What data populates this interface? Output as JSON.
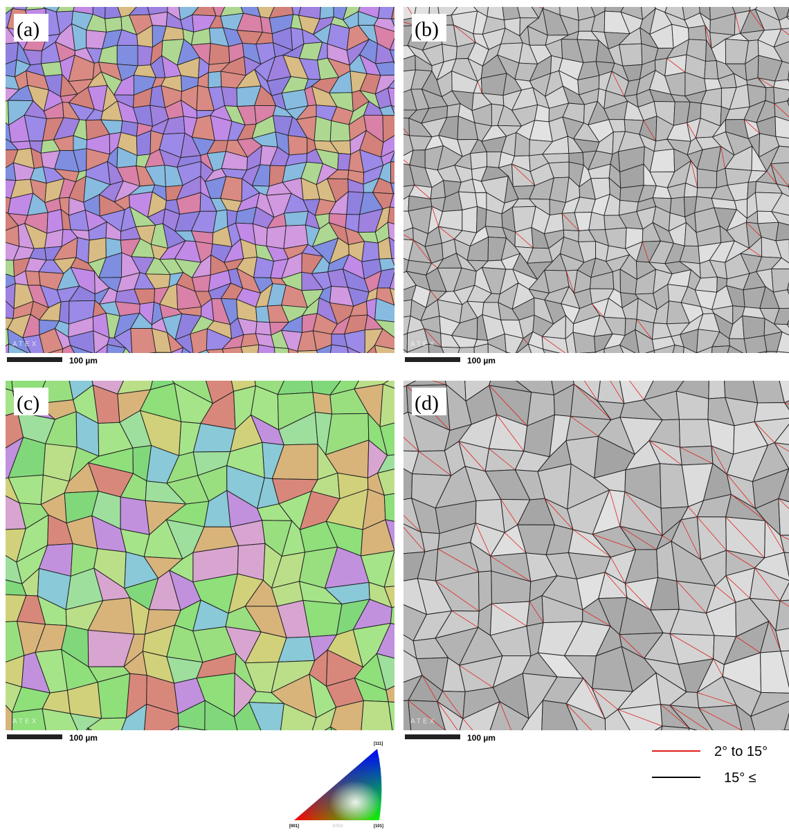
{
  "panels": [
    {
      "label": "(a)",
      "scale_bar": "100 µm",
      "watermark": "ATEX",
      "style": "ipf-fine"
    },
    {
      "label": "(b)",
      "scale_bar": "100 µm",
      "watermark": "ATEX",
      "style": "grey-fine"
    },
    {
      "label": "(c)",
      "scale_bar": "100 µm",
      "watermark": "ATEX",
      "style": "ipf-coarse"
    },
    {
      "label": "(d)",
      "scale_bar": "100 µm",
      "watermark": "ATEX",
      "style": "grey-coarse"
    }
  ],
  "legend": [
    {
      "label": "2° to 15°",
      "color": "#e0201c"
    },
    {
      "label": "15° ≤",
      "color": "#000000"
    }
  ],
  "ipf_key": {
    "top": "[111]",
    "left": "[001]",
    "right": "[101]",
    "watermark": "ATEX"
  }
}
